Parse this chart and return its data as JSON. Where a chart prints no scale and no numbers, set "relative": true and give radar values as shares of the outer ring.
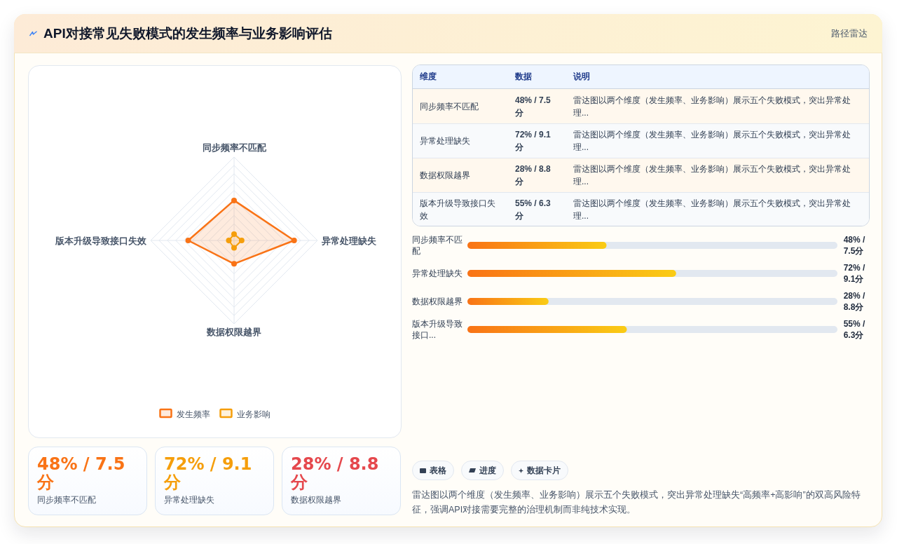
{
  "chart_data": [
    {
      "type": "other",
      "title": "API对接常见失败模式的发生频率与业务影响评估",
      "subtitle": "路径雷达"
    },
    {
      "type": "radar",
      "categories": [
        "同步频率不匹配",
        "异常处理缺失",
        "数据权限越界",
        "版本升级导致接口失效"
      ],
      "relative": true,
      "grid": true,
      "legend": "bottom",
      "marker": "circle",
      "series": [
        {
          "name": "发生频率",
          "color": "#f97316",
          "values": [
            0.48,
            0.72,
            0.28,
            0.55
          ]
        },
        {
          "name": "业务影响",
          "color": "#f59e0b",
          "values": [
            0.075,
            0.091,
            0.088,
            0.063
          ]
        }
      ]
    },
    {
      "type": "other",
      "annotations": [
        "维度",
        "数据",
        "说明",
        "同步频率不匹配",
        "48% / 7.5分",
        "雷达图以两个维度（发生频率、业务影响）展示五个失败模式，突出异常处理...",
        "异常处理缺失",
        "72% / 9.1分",
        "雷达图以两个维度（发生频率、业务影响）展示五个失败模式，突出异常处理...",
        "数据权限越界",
        "28% / 8.8分",
        "雷达图以两个维度（发生频率、业务影响）展示五个失败模式，突出异常处理...",
        "版本升级导致接口失效",
        "55% / 6.3分",
        "雷达图以两个维度（发生频率、业务影响）展示五个失败模式，突出异常处理..."
      ]
    },
    {
      "type": "bar",
      "orientation": "horizontal",
      "categories": [
        "同步频率不匹配",
        "异常处理缺失",
        "数据权限越界",
        "版本升级导致接口..."
      ],
      "values": [
        48,
        72,
        28,
        55
      ],
      "value_labels": [
        "48% / 7.5分",
        "72% / 9.1分",
        "28% / 8.8分",
        "55% / 6.3分"
      ],
      "color": "#f97316"
    },
    {
      "type": "other",
      "annotations": [
        "48% / 7.5分",
        "同步频率不匹配",
        "72% / 9.1分",
        "异常处理缺失",
        "28% / 8.8分",
        "数据权限越界"
      ],
      "colors": [
        "#f97316",
        "#f59e0b",
        "#e5484d"
      ]
    },
    {
      "type": "other",
      "annotations": [
        "表格",
        "进度",
        "数据卡片",
        "雷达图以两个维度（发生频率、业务影响）展示五个失败模式，突出异常处理缺失“高频率+高影响”的双高风险特征，强调API对接需要完整的治理机制而非纯技术实现。"
      ]
    }
  ]
}
